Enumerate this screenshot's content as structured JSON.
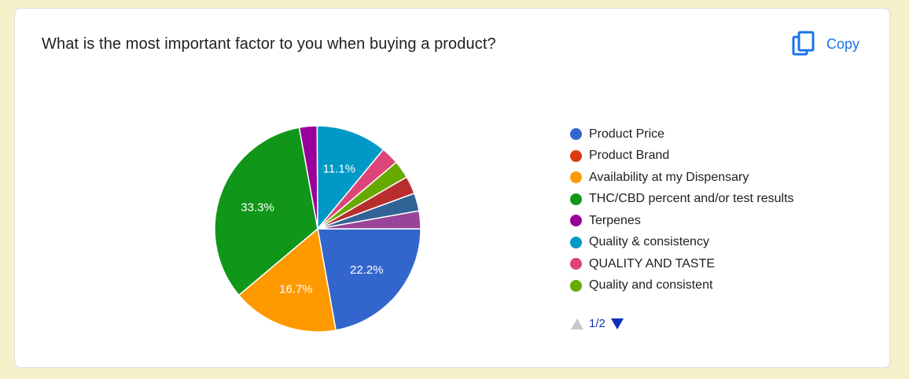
{
  "card": {
    "title": "What is the most important factor to you when buying a product?",
    "copy_label": "Copy",
    "copy_icon": "copy-icon",
    "accent": "#1a73e8"
  },
  "pager": {
    "label": "1/2",
    "prev_icon": "triangle-up-icon",
    "next_icon": "triangle-down-icon"
  },
  "chart_data": {
    "type": "pie",
    "title": "",
    "legend_position": "right",
    "slices": [
      {
        "label": "Product Price",
        "value": 22.2,
        "color": "#3366cc",
        "show_label": "22.2%"
      },
      {
        "label": "Product Brand",
        "value": 0,
        "color": "#dc3912",
        "show_label": ""
      },
      {
        "label": "Availability at my Dispensary",
        "value": 16.7,
        "color": "#ff9900",
        "show_label": "16.7%"
      },
      {
        "label": "THC/CBD percent and/or test results",
        "value": 33.3,
        "color": "#109618",
        "show_label": "33.3%"
      },
      {
        "label": "Terpenes",
        "value": 2.8,
        "color": "#990099",
        "show_label": ""
      },
      {
        "label": "Quality & consistency",
        "value": 11.1,
        "color": "#0099c6",
        "show_label": "11.1%"
      },
      {
        "label": "QUALITY AND TASTE",
        "value": 2.8,
        "color": "#dd4477",
        "show_label": ""
      },
      {
        "label": "Quality and consistent",
        "value": 2.8,
        "color": "#66aa00",
        "show_label": ""
      },
      {
        "label": "",
        "value": 2.8,
        "color": "#b82e2e",
        "show_label": ""
      },
      {
        "label": "",
        "value": 2.8,
        "color": "#316395",
        "show_label": ""
      },
      {
        "label": "",
        "value": 2.8,
        "color": "#994499",
        "show_label": ""
      }
    ],
    "legend": [
      {
        "label": "Product Price",
        "color": "#3366cc"
      },
      {
        "label": "Product Brand",
        "color": "#dc3912"
      },
      {
        "label": "Availability at my Dispensary",
        "color": "#ff9900"
      },
      {
        "label": "THC/CBD percent and/or test results",
        "color": "#109618"
      },
      {
        "label": "Terpenes",
        "color": "#990099"
      },
      {
        "label": "Quality & consistency",
        "color": "#0099c6"
      },
      {
        "label": "QUALITY AND TASTE",
        "color": "#dd4477"
      },
      {
        "label": "Quality and consistent",
        "color": "#66aa00"
      }
    ]
  }
}
